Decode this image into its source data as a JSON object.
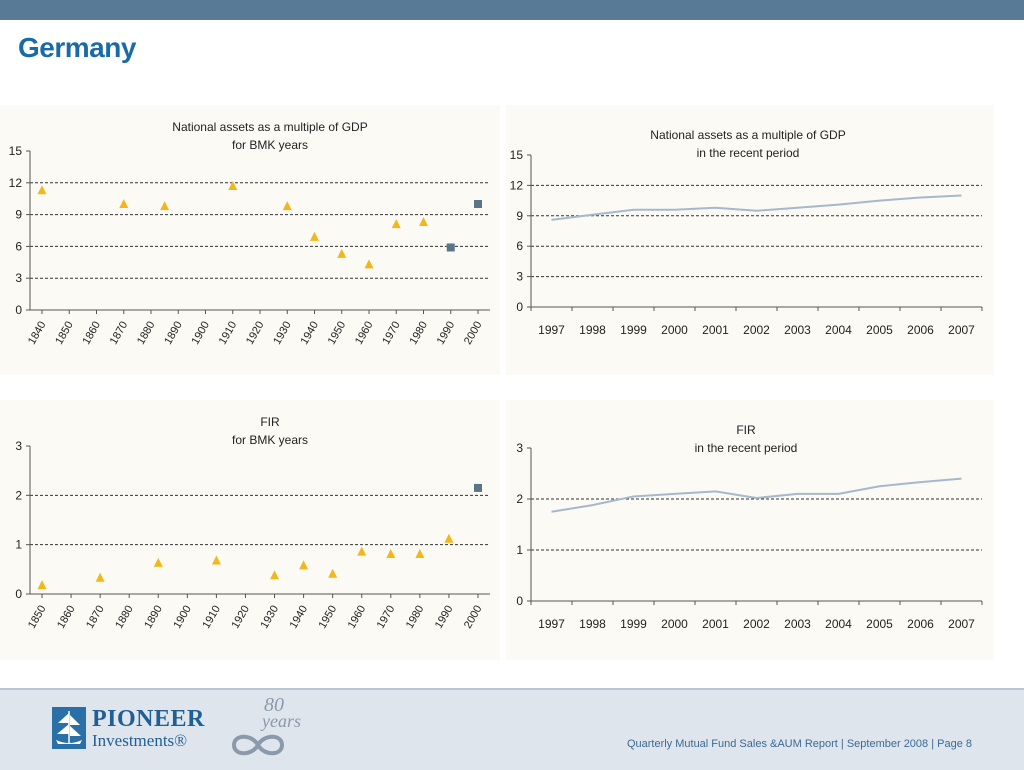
{
  "page": {
    "title": "Germany",
    "footer_text": "Quarterly Mutual Fund Sales &AUM Report | September 2008 | Page 8",
    "logo_line1": "PIONEER",
    "logo_line2": "Investments®",
    "anniversary_number": "80",
    "anniversary_word": "years",
    "colors": {
      "topbar": "#587a96",
      "title": "#1a6aa8",
      "marker_triangle": "#f3b71c",
      "marker_square": "#5a7489",
      "line": "#a6b8cc"
    }
  },
  "chart_data": [
    {
      "type": "scatter",
      "title": "National assets as a multiple of GDP",
      "subtitle": "for BMK years",
      "ylim": [
        0,
        15
      ],
      "yticks": [
        0,
        3,
        6,
        9,
        12,
        15
      ],
      "xlim": [
        1840,
        2000
      ],
      "xticks": [
        "1840",
        "1850",
        "1860",
        "1870",
        "1880",
        "1890",
        "1900",
        "1910",
        "1920",
        "1930",
        "1940",
        "1950",
        "1960",
        "1970",
        "1980",
        "1990",
        "2000"
      ],
      "gridlines": [
        3,
        6,
        9,
        12
      ],
      "grid_style": "dashed",
      "series": [
        {
          "marker": "triangle",
          "x": [
            1840,
            1870,
            1885,
            1910,
            1930,
            1940,
            1950,
            1960,
            1970,
            1980
          ],
          "y": [
            11.3,
            10.0,
            9.8,
            11.7,
            9.8,
            6.9,
            5.3,
            4.3,
            8.1,
            8.3
          ]
        },
        {
          "marker": "square",
          "x": [
            1990,
            2000
          ],
          "y": [
            5.9,
            10.0
          ]
        }
      ]
    },
    {
      "type": "line",
      "title": "National assets as a multiple of GDP",
      "subtitle": "in the recent period",
      "ylim": [
        0,
        15
      ],
      "yticks": [
        0,
        3,
        6,
        9,
        12,
        15
      ],
      "categories": [
        "1997",
        "1998",
        "1999",
        "2000",
        "2001",
        "2002",
        "2003",
        "2004",
        "2005",
        "2006",
        "2007"
      ],
      "gridlines": [
        3,
        6,
        9,
        12
      ],
      "grid_style": "dashed",
      "series": [
        {
          "values": [
            8.6,
            9.1,
            9.6,
            9.6,
            9.8,
            9.5,
            9.8,
            10.1,
            10.5,
            10.8,
            11.0
          ]
        }
      ]
    },
    {
      "type": "scatter",
      "title": "FIR",
      "subtitle": "for BMK years",
      "ylim": [
        0,
        3
      ],
      "yticks": [
        0,
        1,
        2,
        3
      ],
      "xlim": [
        1850,
        2000
      ],
      "xticks": [
        "1850",
        "1860",
        "1870",
        "1880",
        "1890",
        "1900",
        "1910",
        "1920",
        "1930",
        "1940",
        "1950",
        "1960",
        "1970",
        "1980",
        "1990",
        "2000"
      ],
      "gridlines": [
        1,
        2
      ],
      "grid_style": "dashed",
      "series": [
        {
          "marker": "triangle",
          "x": [
            1850,
            1870,
            1890,
            1910,
            1930,
            1940,
            1950,
            1960,
            1970,
            1980,
            1990
          ],
          "y": [
            0.18,
            0.33,
            0.63,
            0.68,
            0.38,
            0.58,
            0.41,
            0.86,
            0.81,
            0.81,
            1.12
          ]
        },
        {
          "marker": "square",
          "x": [
            2000
          ],
          "y": [
            2.15
          ]
        }
      ]
    },
    {
      "type": "line",
      "title": "FIR",
      "subtitle": "in the recent period",
      "ylim": [
        0,
        3
      ],
      "yticks": [
        0,
        1,
        2,
        3
      ],
      "categories": [
        "1997",
        "1998",
        "1999",
        "2000",
        "2001",
        "2002",
        "2003",
        "2004",
        "2005",
        "2006",
        "2007"
      ],
      "gridlines": [
        1,
        2
      ],
      "grid_style": "dashed",
      "series": [
        {
          "values": [
            1.75,
            1.88,
            2.05,
            2.1,
            2.15,
            2.02,
            2.1,
            2.1,
            2.25,
            2.33,
            2.4
          ]
        }
      ]
    }
  ]
}
